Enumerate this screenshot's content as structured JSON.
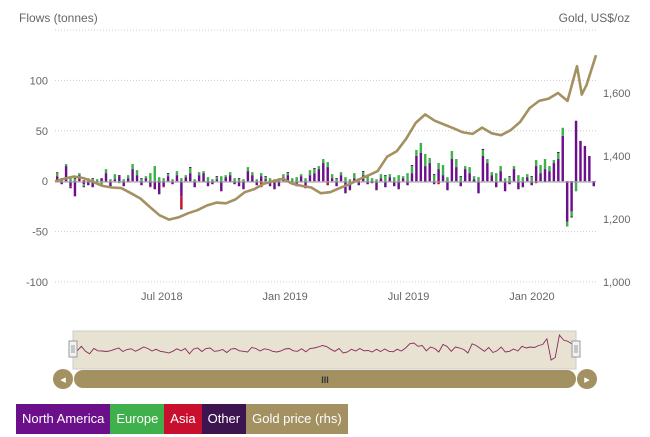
{
  "chart_data": {
    "type": "bar",
    "title": "",
    "y_left_label": "Flows (tonnes)",
    "y_right_label": "Gold, US$/oz",
    "y_left_ticks": [
      "-100",
      "-50",
      "0",
      "50",
      "100"
    ],
    "y_left_range": [
      -100,
      150
    ],
    "y_right_ticks": [
      "1,000",
      "1,200",
      "1,400",
      "1,600"
    ],
    "y_right_range": [
      1000,
      1800
    ],
    "x_ticks": [
      "Jul 2018",
      "Jan 2019",
      "Jul 2019",
      "Jan 2020"
    ],
    "x_range_weeks": [
      0,
      114
    ],
    "x_tick_weeks": [
      22.5,
      48.5,
      74.5,
      100.5
    ],
    "stacked": true,
    "series": [
      {
        "name": "North America",
        "color": "#6b0f8a",
        "values": [
          5,
          -3,
          15,
          -5,
          -15,
          6,
          -3,
          -4,
          -6,
          -3,
          3,
          8,
          -6,
          2,
          5,
          -5,
          3,
          12,
          6,
          -4,
          3,
          -5,
          -8,
          -12,
          -5,
          5,
          -3,
          6,
          -15,
          4,
          8,
          -6,
          6,
          8,
          -5,
          -3,
          2,
          -10,
          4,
          6,
          -3,
          -5,
          -8,
          10,
          6,
          -4,
          5,
          2,
          -5,
          -8,
          -4,
          4,
          6,
          -3,
          -5,
          5,
          -7,
          6,
          8,
          12,
          18,
          14,
          3,
          -5,
          6,
          -12,
          -8,
          3,
          -4,
          6,
          -3,
          -2,
          -8,
          3,
          -6,
          4,
          -5,
          -7,
          3,
          -4,
          8,
          25,
          28,
          15,
          18,
          -3,
          12,
          6,
          -8,
          22,
          14,
          -5,
          12,
          8,
          2,
          -12,
          25,
          18,
          6,
          -5,
          10,
          -10,
          -3,
          12,
          -8,
          -5,
          4,
          -4,
          15,
          8,
          12,
          10,
          18,
          22,
          45,
          -40,
          -30,
          60,
          40,
          35,
          25,
          -5
        ]
      },
      {
        "name": "Europe",
        "color": "#3fb04b",
        "values": [
          3,
          2,
          2,
          3,
          2,
          2,
          -2,
          3,
          2,
          2,
          -3,
          4,
          2,
          5,
          -2,
          2,
          3,
          5,
          5,
          2,
          2,
          8,
          15,
          4,
          3,
          2,
          2,
          4,
          3,
          2,
          5,
          2,
          3,
          2,
          4,
          2,
          2,
          5,
          2,
          3,
          3,
          2,
          2,
          4,
          3,
          2,
          3,
          2,
          3,
          2,
          3,
          3,
          2,
          3,
          4,
          2,
          3,
          5,
          4,
          3,
          4,
          5,
          4,
          2,
          3,
          4,
          2,
          5,
          3,
          3,
          6,
          3,
          2,
          4,
          5,
          3,
          4,
          6,
          2,
          8,
          7,
          6,
          10,
          12,
          5,
          6,
          6,
          10,
          4,
          8,
          8,
          4,
          3,
          6,
          3,
          4,
          6,
          4,
          3,
          8,
          5,
          3,
          4,
          3,
          6,
          4,
          3,
          4,
          6,
          8,
          10,
          5,
          3,
          6,
          8,
          -5,
          -5,
          -10
        ]
      },
      {
        "name": "Asia",
        "color": "#c8102e",
        "values": [
          1,
          0,
          0,
          -1,
          0,
          0,
          1,
          0,
          0,
          0,
          -1,
          0,
          0,
          0,
          0,
          0,
          0,
          0,
          0,
          0,
          0,
          -1,
          0,
          0,
          -1,
          0,
          0,
          0,
          -12,
          0,
          0,
          0,
          0,
          0,
          0,
          0,
          0,
          0,
          0,
          0,
          0,
          0,
          0,
          0,
          0,
          0,
          -6,
          0,
          0,
          0,
          0,
          0,
          0,
          0,
          0,
          0,
          0,
          0,
          0,
          0,
          0,
          -3,
          0,
          0,
          0,
          0,
          0,
          0,
          0,
          0,
          0,
          0,
          0,
          0,
          0,
          0,
          0,
          0,
          0,
          0,
          0,
          0,
          0,
          0,
          0,
          0,
          -3,
          0,
          0,
          0,
          0,
          0,
          0,
          0,
          0,
          0,
          0,
          0,
          0,
          0,
          0,
          0,
          0,
          0,
          0,
          0,
          0,
          0,
          -2,
          0,
          0,
          0,
          0,
          0,
          0,
          0,
          0,
          0
        ]
      },
      {
        "name": "Other",
        "color": "#3b1450",
        "values": [
          0,
          1,
          0,
          -1,
          1,
          0,
          -1,
          0,
          1,
          0,
          0,
          -1,
          0,
          0,
          1,
          0,
          -1,
          0,
          0,
          1,
          0,
          0,
          0,
          -1,
          0,
          1,
          0,
          0,
          -1,
          0,
          1,
          0,
          0,
          -1,
          0,
          0,
          1,
          0,
          0,
          -1,
          0,
          1,
          0,
          0,
          -1,
          0,
          0,
          1,
          0,
          0,
          -1,
          0,
          1,
          0,
          0,
          -1,
          0,
          0,
          1,
          0,
          0,
          -1,
          0,
          1,
          0,
          0,
          -1,
          0,
          0,
          1,
          0,
          0,
          -1,
          0,
          1,
          0,
          0,
          -1,
          0,
          0,
          1,
          0,
          0,
          -1,
          0,
          1,
          0,
          0,
          -1,
          0,
          0,
          1,
          0,
          0,
          -1,
          0,
          1,
          0,
          0,
          -1,
          0,
          0,
          1,
          0,
          0,
          -1,
          0,
          1,
          0,
          0,
          -1,
          0,
          0,
          1,
          0,
          0,
          -1
        ]
      },
      {
        "name": "Gold price (rhs)",
        "color": "#a39161",
        "type": "line",
        "axis": "right",
        "x": [
          0,
          2,
          4,
          6,
          8,
          10,
          12,
          14,
          16,
          18,
          20,
          22,
          24,
          26,
          28,
          30,
          32,
          34,
          36,
          38,
          40,
          42,
          44,
          46,
          48,
          50,
          52,
          54,
          56,
          58,
          60,
          62,
          64,
          66,
          68,
          70,
          72,
          74,
          76,
          78,
          80,
          82,
          84,
          86,
          88,
          90,
          92,
          94,
          96,
          98,
          100,
          102,
          104,
          106,
          108,
          110,
          111,
          112,
          114
        ],
        "values": [
          1320,
          1328,
          1335,
          1330,
          1318,
          1305,
          1300,
          1298,
          1282,
          1265,
          1238,
          1212,
          1198,
          1205,
          1218,
          1228,
          1243,
          1252,
          1250,
          1262,
          1285,
          1295,
          1312,
          1320,
          1328,
          1312,
          1305,
          1300,
          1282,
          1285,
          1298,
          1310,
          1325,
          1338,
          1352,
          1398,
          1415,
          1455,
          1505,
          1532,
          1512,
          1500,
          1488,
          1475,
          1470,
          1490,
          1472,
          1466,
          1482,
          1508,
          1552,
          1575,
          1582,
          1600,
          1575,
          1685,
          1595,
          1625,
          1720
        ]
      }
    ],
    "legend": "bottom-left",
    "grid": "horizontal dotted"
  },
  "navigator": {
    "scroll_grip": "III",
    "left_arrow": "◂",
    "right_arrow": "▸"
  },
  "legend_items": [
    {
      "label": "North America",
      "color": "#6b0f8a"
    },
    {
      "label": "Europe",
      "color": "#3fb04b"
    },
    {
      "label": "Asia",
      "color": "#c8102e"
    },
    {
      "label": "Other",
      "color": "#3b1450"
    },
    {
      "label": "Gold price (rhs)",
      "color": "#a39161"
    }
  ]
}
